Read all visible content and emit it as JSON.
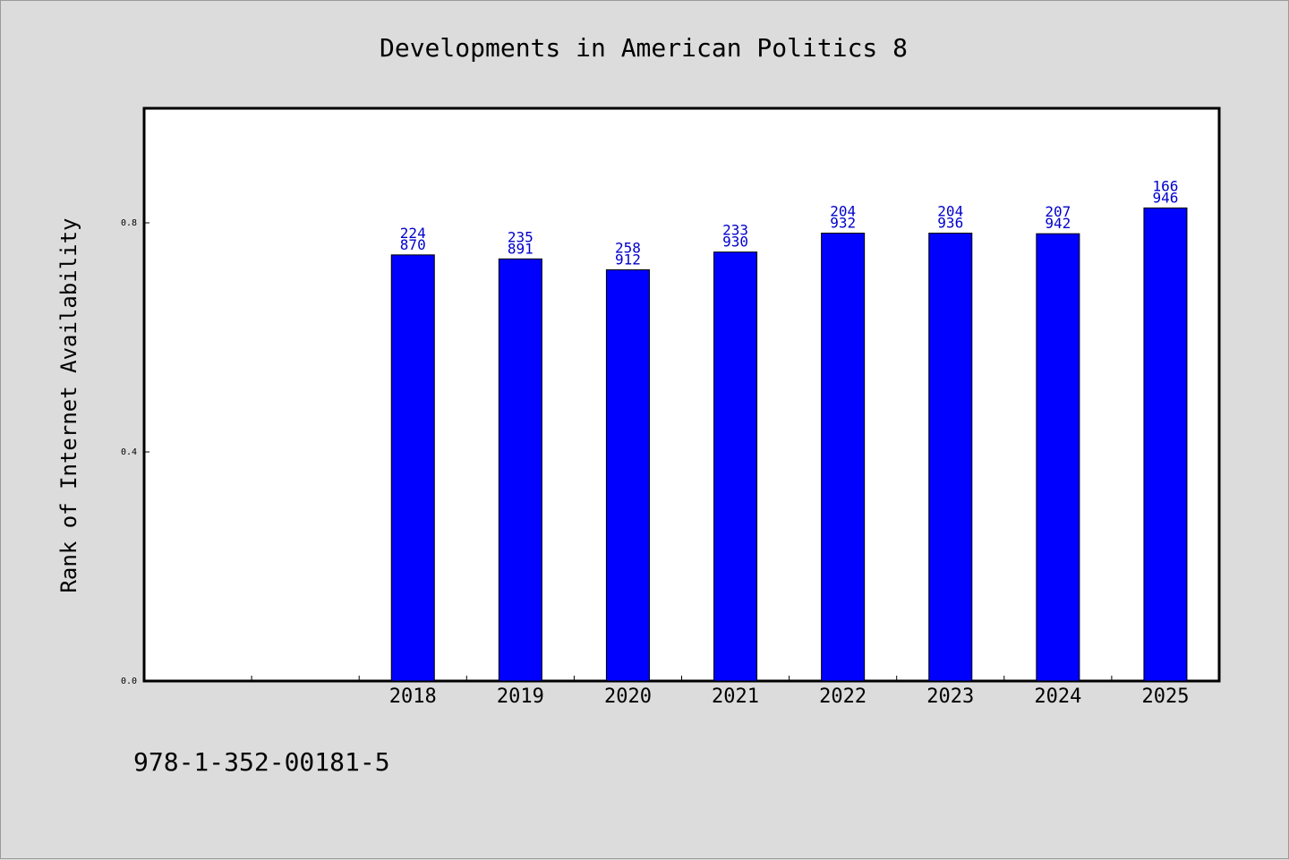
{
  "page": {
    "footer_code": "978-1-352-00181-5"
  },
  "colors": {
    "background": "#dcdcdc",
    "plot_background": "#ffffff",
    "bar": "#0000ff",
    "data_label": "#0000cc",
    "axis": "#000000"
  },
  "chart_data": {
    "type": "bar",
    "title": "Developments in American Politics 8",
    "xlabel": "",
    "ylabel": "Rank of Internet Availability",
    "categories": [
      "",
      "",
      "2018",
      "2019",
      "2020",
      "2021",
      "2022",
      "2023",
      "2024",
      "2025"
    ],
    "values": [
      null,
      null,
      0.744,
      0.737,
      0.718,
      0.749,
      0.782,
      0.782,
      0.781,
      0.826
    ],
    "labels_top": [
      "",
      "",
      "224",
      "235",
      "258",
      "233",
      "204",
      "204",
      "207",
      "166"
    ],
    "labels_bottom": [
      "",
      "",
      "870",
      "891",
      "912",
      "930",
      "932",
      "936",
      "942",
      "946"
    ],
    "y_ticks": [
      "0.0",
      "0.4",
      "0.8"
    ],
    "ylim": [
      0,
      1.0
    ],
    "grid": false,
    "legend": "none"
  }
}
